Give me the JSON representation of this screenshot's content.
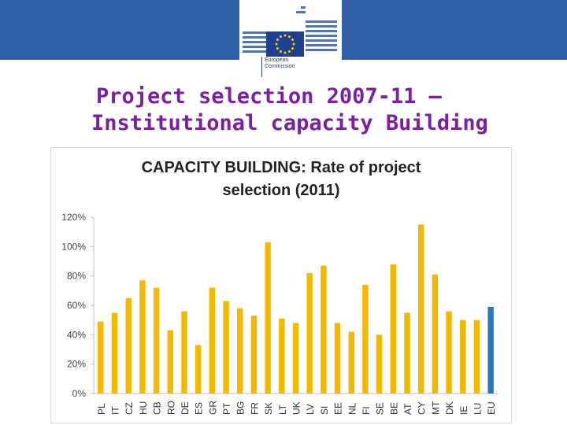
{
  "header": {
    "logo_line1": "European",
    "logo_line2": "Commission"
  },
  "slide": {
    "title_line1": "Project selection 2007-11 –",
    "title_line2": "Institutional capacity Building"
  },
  "colors": {
    "header_band": "#2f5fa6",
    "bar": "#f5b800",
    "bar_highlight": "#2e75b6",
    "title": "#7b1fa2"
  },
  "chart_data": {
    "type": "bar",
    "title_line1": "CAPACITY BUILDING: Rate of project",
    "title_line2": "selection (2011)",
    "xlabel": "",
    "ylabel": "",
    "ylim": [
      0,
      1.2
    ],
    "yticks": [
      0,
      0.2,
      0.4,
      0.6,
      0.8,
      1.0,
      1.2
    ],
    "ytick_labels": [
      "0%",
      "20%",
      "40%",
      "60%",
      "80%",
      "100%",
      "120%"
    ],
    "grid": false,
    "categories": [
      "PL",
      "IT",
      "CZ",
      "HU",
      "CB",
      "RO",
      "DE",
      "ES",
      "GR",
      "PT",
      "BG",
      "FR",
      "SK",
      "LT",
      "UK",
      "LV",
      "SI",
      "EE",
      "NL",
      "FI",
      "SE",
      "BE",
      "AT",
      "CY",
      "MT",
      "DK",
      "IE",
      "LU",
      "EU"
    ],
    "values": [
      0.49,
      0.55,
      0.65,
      0.77,
      0.72,
      0.43,
      0.56,
      0.33,
      0.72,
      0.63,
      0.58,
      0.53,
      1.03,
      0.51,
      0.48,
      0.82,
      0.87,
      0.48,
      0.42,
      0.74,
      0.4,
      0.88,
      0.55,
      1.15,
      0.81,
      0.56,
      0.5,
      0.5,
      0.59
    ],
    "highlight_category": "EU"
  }
}
